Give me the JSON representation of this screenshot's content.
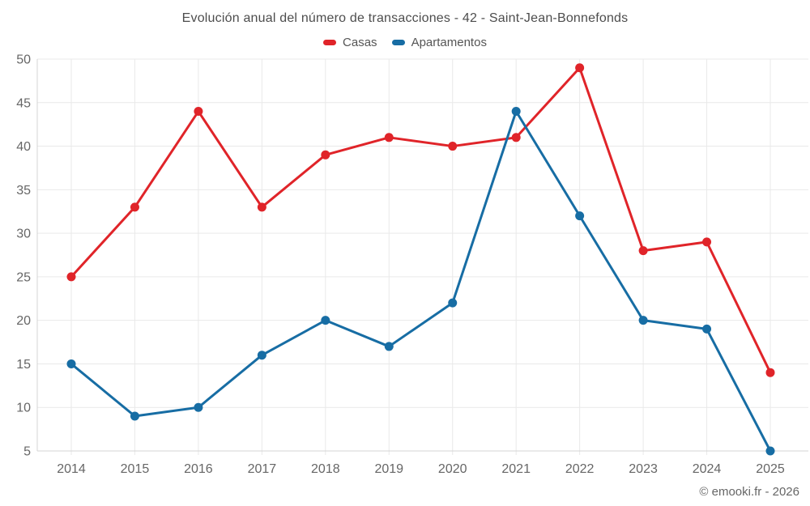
{
  "footer": {
    "watermark": "© emooki.fr - 2026"
  },
  "chart_data": {
    "type": "line",
    "title": "Evolución anual del número de transacciones - 42 - Saint-Jean-Bonnefonds",
    "categories": [
      "2014",
      "2015",
      "2016",
      "2017",
      "2018",
      "2019",
      "2020",
      "2021",
      "2022",
      "2023",
      "2024",
      "2025"
    ],
    "series": [
      {
        "name": "Casas",
        "color": "#e02429",
        "values": [
          25,
          33,
          44,
          33,
          39,
          41,
          40,
          41,
          49,
          28,
          29,
          14
        ]
      },
      {
        "name": "Apartamentos",
        "color": "#176da4",
        "values": [
          15,
          9,
          10,
          16,
          20,
          17,
          22,
          44,
          32,
          20,
          19,
          5
        ]
      }
    ],
    "xlabel": "",
    "ylabel": "",
    "ylim": [
      5,
      50
    ],
    "yticks": [
      5,
      10,
      15,
      20,
      25,
      30,
      35,
      40,
      45,
      50
    ],
    "grid": true,
    "legend_position": "top",
    "colors": {
      "grid": "#e9e9e9",
      "axis": "#d4d4d4",
      "tick_text": "#666666",
      "title_text": "#4d4d4d",
      "legend_text": "#555555",
      "watermark_text": "#666666",
      "background": "#ffffff"
    }
  }
}
